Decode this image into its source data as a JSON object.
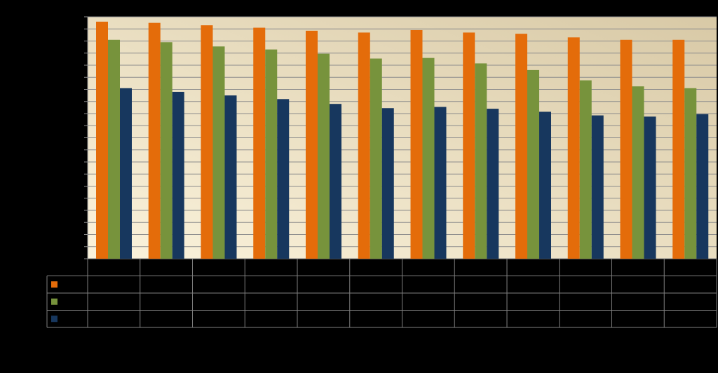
{
  "colors": {
    "background": "#000000",
    "plot_gradient_start": "#fbf3dc",
    "plot_gradient_end": "#d8c9a6",
    "gridline": "#8c8c8c",
    "table_border": "#7f7f7f"
  },
  "chart_data": {
    "type": "bar",
    "title": "",
    "xlabel": "",
    "ylabel": "",
    "ylim": [
      0,
      20
    ],
    "y_step": 1,
    "grid": true,
    "legend": "data-table-left",
    "categories": [
      "",
      "",
      "",
      "",
      "",
      "",
      "",
      "",
      "",
      "",
      "",
      ""
    ],
    "series": [
      {
        "color": "#e46c0a",
        "values": [
          19.6,
          19.5,
          19.3,
          19.1,
          18.85,
          18.7,
          18.9,
          18.7,
          18.6,
          18.3,
          18.1,
          18.1
        ]
      },
      {
        "color": "#77933c",
        "values": [
          18.1,
          17.9,
          17.55,
          17.3,
          16.95,
          16.55,
          16.6,
          16.15,
          15.6,
          14.75,
          14.25,
          14.1
        ]
      },
      {
        "color": "#17375e",
        "values": [
          14.1,
          13.8,
          13.5,
          13.2,
          12.8,
          12.45,
          12.55,
          12.4,
          12.15,
          11.85,
          11.75,
          11.95
        ]
      }
    ]
  }
}
